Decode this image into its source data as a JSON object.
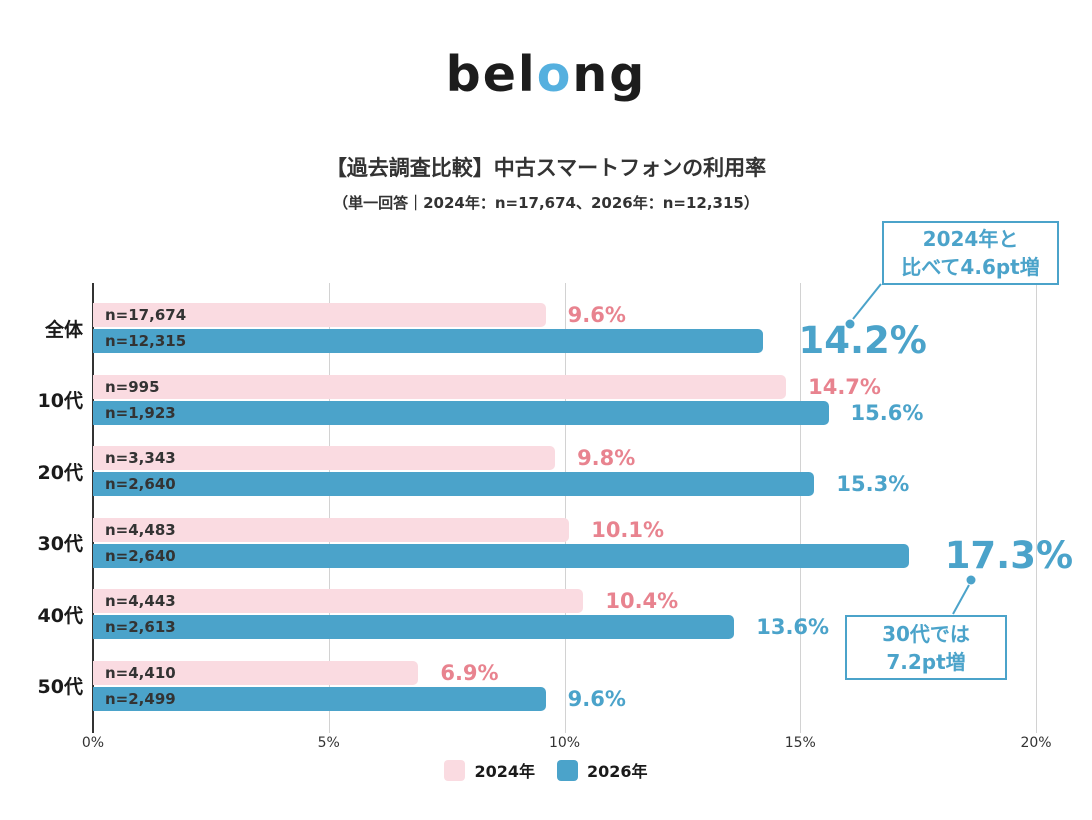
{
  "logo": {
    "pre": "bel",
    "o": "o",
    "post": "ng"
  },
  "header": {
    "title": "【過去調査比較】中古スマートフォンの利用率",
    "subtitle": "（単一回答｜2024年：n=17,674、2026年：n=12,315）"
  },
  "callouts": {
    "overall": {
      "line1": "2024年と",
      "line2": "比べて4.6pt増"
    },
    "thirties": {
      "line1": "30代では",
      "line2": "7.2pt増"
    }
  },
  "chart_data": {
    "type": "bar",
    "orientation": "horizontal",
    "title": "【過去調査比較】中古スマートフォンの利用率",
    "categories": [
      "全体",
      "10代",
      "20代",
      "30代",
      "40代",
      "50代"
    ],
    "xlim": [
      0,
      20
    ],
    "x_ticks": [
      "0%",
      "5%",
      "10%",
      "15%",
      "20%"
    ],
    "grid": true,
    "legend_position": "bottom",
    "series": [
      {
        "name": "2024年",
        "bar_color": "#FADBE1",
        "label_color": "#E8838F",
        "values": [
          9.6,
          14.7,
          9.8,
          10.1,
          10.4,
          6.9
        ],
        "n_labels": [
          "n=17,674",
          "n=995",
          "n=3,343",
          "n=4,483",
          "n=4,443",
          "n=4,410"
        ]
      },
      {
        "name": "2026年",
        "bar_color": "#4BA3CA",
        "label_color": "#4BA3CA",
        "values": [
          14.2,
          15.6,
          15.3,
          17.3,
          13.6,
          9.6
        ],
        "n_labels": [
          "n=12,315",
          "n=1,923",
          "n=2,640",
          "n=2,640",
          "n=2,613",
          "n=2,499"
        ]
      }
    ],
    "emphasized_labels": [
      {
        "row": 0,
        "series": 1
      },
      {
        "row": 3,
        "series": 1
      }
    ]
  },
  "colors": {
    "accent_blue": "#4BA3CA",
    "pink_bar": "#FADBE1",
    "pink_text": "#E8838F",
    "logo_o": "#55B0DF",
    "text_dark": "#333333"
  }
}
